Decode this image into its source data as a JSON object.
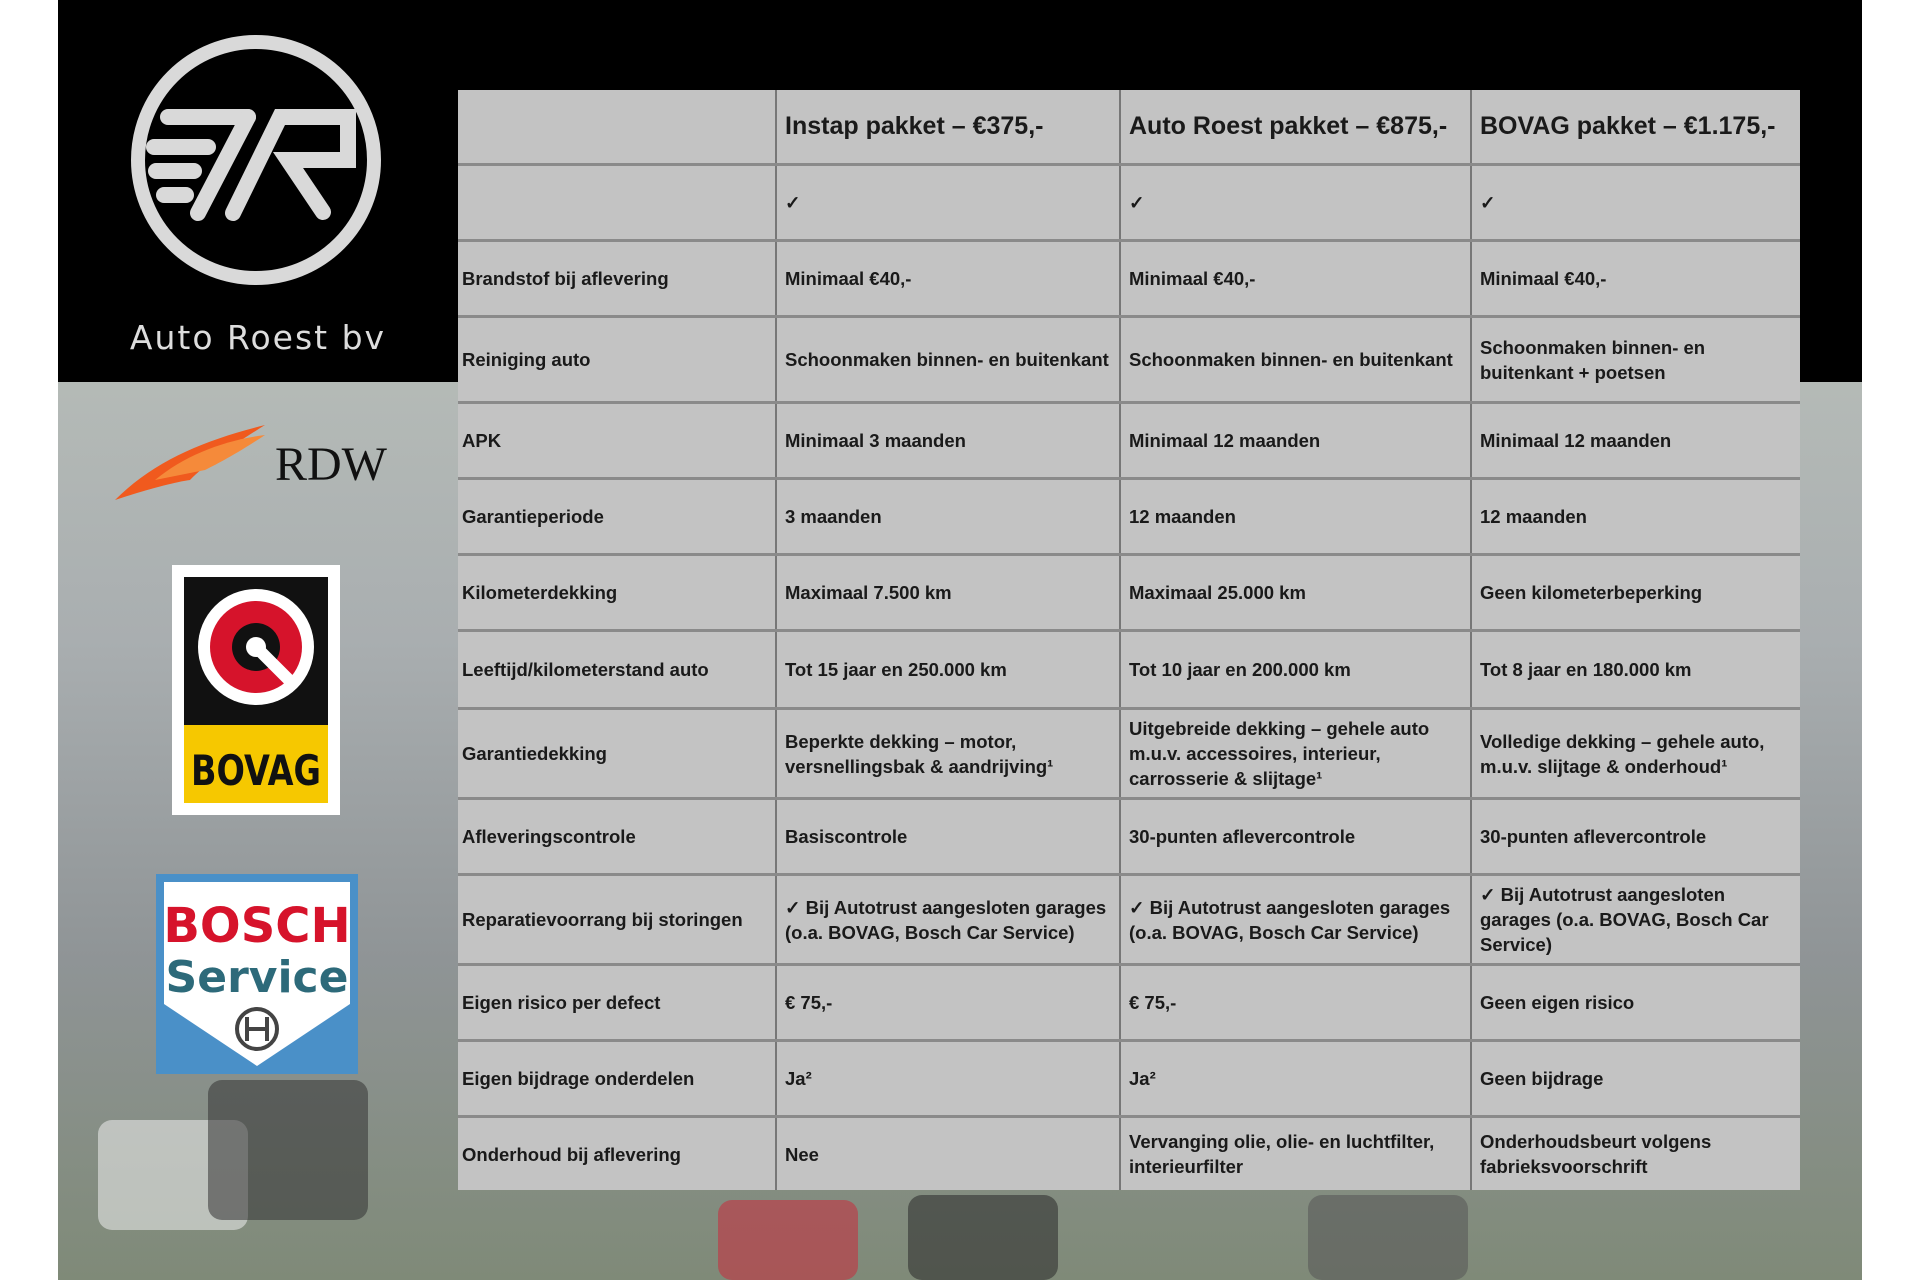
{
  "brand": {
    "name": "Auto Roest bv",
    "logo_letters": "R"
  },
  "logos": {
    "rdw": "RDW",
    "bovag": "BOVAG",
    "bosch_line1": "BOSCH",
    "bosch_line2": "Service"
  },
  "colors": {
    "table_bg": "#c3c3c3",
    "rdw_orange": "#f05a1e",
    "bovag_yellow": "#f6c800",
    "bovag_red": "#d6132b",
    "bosch_red": "#d6132b",
    "bosch_blue": "#4a90c8",
    "bosch_text": "#2d6a7a"
  },
  "table": {
    "header": [
      "",
      "Instap pakket – €375,-",
      "Auto Roest pakket – €875,-",
      "BOVAG pakket – €1.175,-"
    ],
    "rows": [
      {
        "label": "",
        "values": [
          "✓",
          "✓",
          "✓"
        ]
      },
      {
        "label": "Brandstof bij aflevering",
        "values": [
          "Minimaal €40,-",
          "Minimaal €40,-",
          "Minimaal €40,-"
        ]
      },
      {
        "label": "Reiniging auto",
        "values": [
          "Schoonmaken binnen- en buitenkant",
          "Schoonmaken binnen- en buitenkant",
          "Schoonmaken binnen- en buitenkant + poetsen"
        ]
      },
      {
        "label": "APK",
        "values": [
          "Minimaal 3 maanden",
          "Minimaal 12 maanden",
          "Minimaal 12 maanden"
        ]
      },
      {
        "label": "Garantieperiode",
        "values": [
          "3 maanden",
          "12 maanden",
          "12 maanden"
        ]
      },
      {
        "label": "Kilometerdekking",
        "values": [
          "Maximaal 7.500 km",
          "Maximaal 25.000 km",
          "Geen kilometerbeperking"
        ]
      },
      {
        "label": "Leeftijd/kilometerstand auto",
        "values": [
          "Tot 15 jaar en 250.000 km",
          "Tot 10 jaar en 200.000 km",
          "Tot 8 jaar en 180.000 km"
        ]
      },
      {
        "label": "Garantiedekking",
        "values": [
          "Beperkte dekking – motor, versnellingsbak & aandrijving¹",
          "Uitgebreide dekking – gehele auto m.u.v. accessoires, interieur, carrosserie & slijtage¹",
          "Volledige dekking – gehele auto, m.u.v. slijtage & onderhoud¹"
        ]
      },
      {
        "label": "Afleveringscontrole",
        "values": [
          "Basiscontrole",
          "30-punten aflevercontrole",
          "30-punten aflevercontrole"
        ]
      },
      {
        "label": "Reparatievoorrang bij storingen",
        "values": [
          "✓ Bij Autotrust aangesloten garages (o.a. BOVAG, Bosch Car Service)",
          "✓ Bij Autotrust aangesloten garages (o.a. BOVAG, Bosch Car Service)",
          "✓ Bij Autotrust aangesloten garages (o.a. BOVAG, Bosch Car Service)"
        ]
      },
      {
        "label": "Eigen risico per defect",
        "values": [
          "€ 75,-",
          "€ 75,-",
          "Geen eigen risico"
        ]
      },
      {
        "label": "Eigen bijdrage onderdelen",
        "values": [
          "Ja²",
          "Ja²",
          "Geen bijdrage"
        ]
      },
      {
        "label": "Onderhoud bij aflevering",
        "values": [
          "Nee",
          "Vervanging olie, olie- en luchtfilter, interieurfilter",
          "Onderhoudsbeurt volgens fabrieksvoorschrift"
        ]
      }
    ]
  }
}
